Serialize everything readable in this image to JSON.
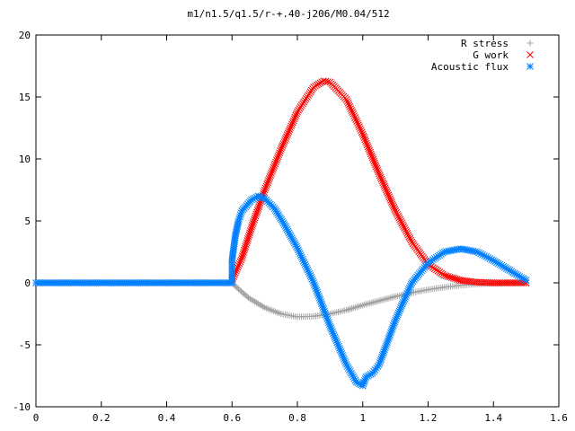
{
  "chart_data": {
    "type": "scatter",
    "title": "m1/n1.5/q1.5/r-+.40-j206/M0.04/512",
    "xlabel": "",
    "ylabel": "",
    "xlim": [
      0,
      1.6
    ],
    "ylim": [
      -10,
      20
    ],
    "x_ticks": [
      "0",
      "0.2",
      "0.4",
      "0.6",
      "0.8",
      "1",
      "1.2",
      "1.4",
      "1.6"
    ],
    "y_ticks": [
      "-10",
      "-5",
      "0",
      "5",
      "10",
      "15",
      "20"
    ],
    "grid": false,
    "legend_position": "top-right",
    "series": [
      {
        "name": "R stress",
        "marker": "plus",
        "color": "#a0a0a0",
        "points": [
          [
            0.0,
            0
          ],
          [
            0.1,
            0
          ],
          [
            0.2,
            0
          ],
          [
            0.3,
            0
          ],
          [
            0.4,
            0
          ],
          [
            0.5,
            0
          ],
          [
            0.6,
            0
          ],
          [
            0.62,
            -0.5
          ],
          [
            0.65,
            -1.2
          ],
          [
            0.7,
            -2.0
          ],
          [
            0.75,
            -2.5
          ],
          [
            0.8,
            -2.75
          ],
          [
            0.85,
            -2.7
          ],
          [
            0.9,
            -2.5
          ],
          [
            0.95,
            -2.2
          ],
          [
            1.0,
            -1.8
          ],
          [
            1.05,
            -1.45
          ],
          [
            1.1,
            -1.1
          ],
          [
            1.15,
            -0.8
          ],
          [
            1.2,
            -0.55
          ],
          [
            1.25,
            -0.35
          ],
          [
            1.3,
            -0.2
          ],
          [
            1.35,
            -0.1
          ],
          [
            1.4,
            -0.05
          ],
          [
            1.45,
            0
          ],
          [
            1.5,
            0
          ]
        ]
      },
      {
        "name": "G work",
        "marker": "cross",
        "color": "#ff0000",
        "points": [
          [
            0.6,
            0.2
          ],
          [
            0.63,
            2.0
          ],
          [
            0.66,
            4.5
          ],
          [
            0.7,
            7.5
          ],
          [
            0.75,
            10.8
          ],
          [
            0.8,
            13.8
          ],
          [
            0.85,
            15.8
          ],
          [
            0.88,
            16.3
          ],
          [
            0.9,
            16.2
          ],
          [
            0.95,
            14.8
          ],
          [
            1.0,
            12.0
          ],
          [
            1.05,
            8.8
          ],
          [
            1.1,
            5.8
          ],
          [
            1.15,
            3.3
          ],
          [
            1.2,
            1.5
          ],
          [
            1.25,
            0.6
          ],
          [
            1.3,
            0.2
          ],
          [
            1.35,
            0.05
          ],
          [
            1.4,
            0
          ],
          [
            1.45,
            0
          ],
          [
            1.5,
            0
          ]
        ]
      },
      {
        "name": "Acoustic flux",
        "marker": "star",
        "color": "#0080ff",
        "points": [
          [
            0.0,
            0
          ],
          [
            0.1,
            0
          ],
          [
            0.2,
            0
          ],
          [
            0.3,
            0
          ],
          [
            0.4,
            0
          ],
          [
            0.5,
            0
          ],
          [
            0.6,
            0
          ],
          [
            0.6,
            1.8
          ],
          [
            0.61,
            3.8
          ],
          [
            0.62,
            5.0
          ],
          [
            0.63,
            5.8
          ],
          [
            0.66,
            6.7
          ],
          [
            0.68,
            7.0
          ],
          [
            0.7,
            6.8
          ],
          [
            0.73,
            6.0
          ],
          [
            0.76,
            4.7
          ],
          [
            0.8,
            2.8
          ],
          [
            0.85,
            0
          ],
          [
            0.9,
            -3.5
          ],
          [
            0.95,
            -6.6
          ],
          [
            0.98,
            -8.0
          ],
          [
            1.0,
            -8.3
          ],
          [
            1.01,
            -7.6
          ],
          [
            1.03,
            -7.3
          ],
          [
            1.05,
            -6.6
          ],
          [
            1.1,
            -3.0
          ],
          [
            1.15,
            0
          ],
          [
            1.2,
            1.6
          ],
          [
            1.25,
            2.5
          ],
          [
            1.3,
            2.75
          ],
          [
            1.35,
            2.5
          ],
          [
            1.4,
            1.8
          ],
          [
            1.45,
            1.0
          ],
          [
            1.5,
            0.2
          ]
        ]
      }
    ]
  }
}
